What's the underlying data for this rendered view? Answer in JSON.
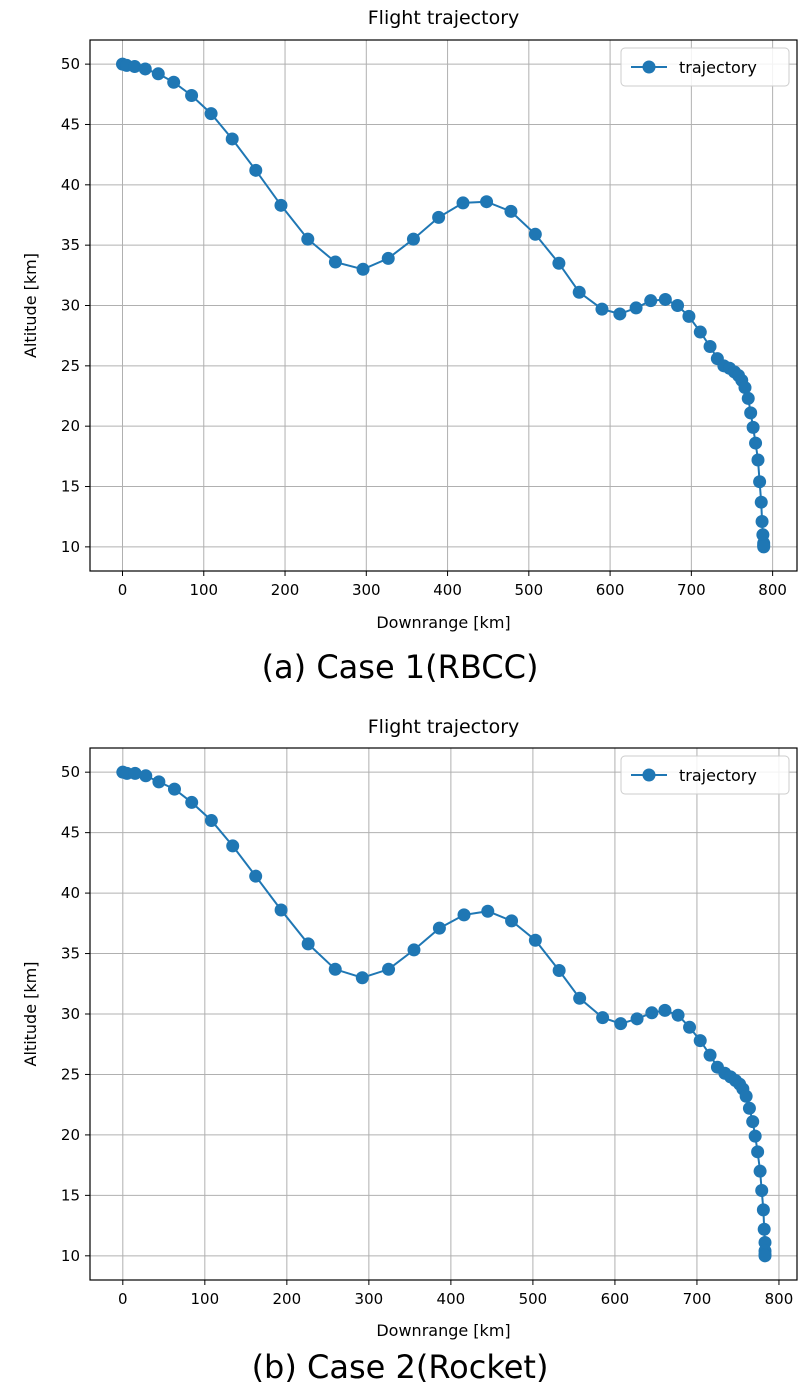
{
  "chart_data": [
    {
      "type": "line",
      "title": "Flight trajectory",
      "xlabel": "Downrange [km]",
      "ylabel": "Altitude [km]",
      "caption": "(a) Case 1(RBCC)",
      "xlim": [
        -40,
        830
      ],
      "ylim": [
        8,
        52
      ],
      "xticks": [
        0,
        100,
        200,
        300,
        400,
        500,
        600,
        700,
        800
      ],
      "yticks": [
        10,
        15,
        20,
        25,
        30,
        35,
        40,
        45,
        50
      ],
      "grid": true,
      "legend": "top-right",
      "color": "#1f77b4",
      "series": [
        {
          "name": "trajectory",
          "x": [
            0,
            5,
            15,
            28,
            44,
            63,
            85,
            109,
            135,
            164,
            195,
            228,
            262,
            296,
            327,
            358,
            389,
            419,
            448,
            478,
            508,
            537,
            562,
            590,
            612,
            632,
            650,
            668,
            683,
            697,
            711,
            723,
            732,
            740,
            747,
            753,
            758,
            762,
            766,
            770,
            773,
            776,
            779,
            782,
            784,
            786,
            787,
            788,
            789,
            789,
            789
          ],
          "y": [
            50,
            49.9,
            49.8,
            49.6,
            49.2,
            48.5,
            47.4,
            45.9,
            43.8,
            41.2,
            38.3,
            35.5,
            33.6,
            33.0,
            33.9,
            35.5,
            37.3,
            38.5,
            38.6,
            37.8,
            35.9,
            33.5,
            31.1,
            29.7,
            29.3,
            29.8,
            30.4,
            30.5,
            30.0,
            29.1,
            27.8,
            26.6,
            25.6,
            25.0,
            24.8,
            24.5,
            24.2,
            23.8,
            23.2,
            22.3,
            21.1,
            19.9,
            18.6,
            17.2,
            15.4,
            13.7,
            12.1,
            11.0,
            10.3,
            10.1,
            10.0
          ]
        }
      ]
    },
    {
      "type": "line",
      "title": "Flight trajectory",
      "xlabel": "Downrange [km]",
      "ylabel": "Altitude [km]",
      "caption": "(b) Case 2(Rocket)",
      "xlim": [
        -40,
        822
      ],
      "ylim": [
        8,
        52
      ],
      "xticks": [
        0,
        100,
        200,
        300,
        400,
        500,
        600,
        700,
        800
      ],
      "yticks": [
        10,
        15,
        20,
        25,
        30,
        35,
        40,
        45,
        50
      ],
      "grid": true,
      "legend": "top-right",
      "color": "#1f77b4",
      "series": [
        {
          "name": "trajectory",
          "x": [
            0,
            5,
            15,
            28,
            44,
            63,
            84,
            108,
            134,
            162,
            193,
            226,
            259,
            292,
            324,
            355,
            386,
            416,
            445,
            474,
            503,
            532,
            557,
            585,
            607,
            627,
            645,
            661,
            677,
            691,
            704,
            716,
            725,
            734,
            741,
            747,
            752,
            756,
            760,
            764,
            768,
            771,
            774,
            777,
            779,
            781,
            782,
            783,
            783,
            783,
            783
          ],
          "y": [
            50,
            49.9,
            49.9,
            49.7,
            49.2,
            48.6,
            47.5,
            46.0,
            43.9,
            41.4,
            38.6,
            35.8,
            33.7,
            33.0,
            33.7,
            35.3,
            37.1,
            38.2,
            38.5,
            37.7,
            36.1,
            33.6,
            31.3,
            29.7,
            29.2,
            29.6,
            30.1,
            30.3,
            29.9,
            28.9,
            27.8,
            26.6,
            25.6,
            25.1,
            24.8,
            24.5,
            24.2,
            23.8,
            23.2,
            22.2,
            21.1,
            19.9,
            18.6,
            17.0,
            15.4,
            13.8,
            12.2,
            11.1,
            10.4,
            10.1,
            10.0
          ]
        }
      ]
    }
  ]
}
